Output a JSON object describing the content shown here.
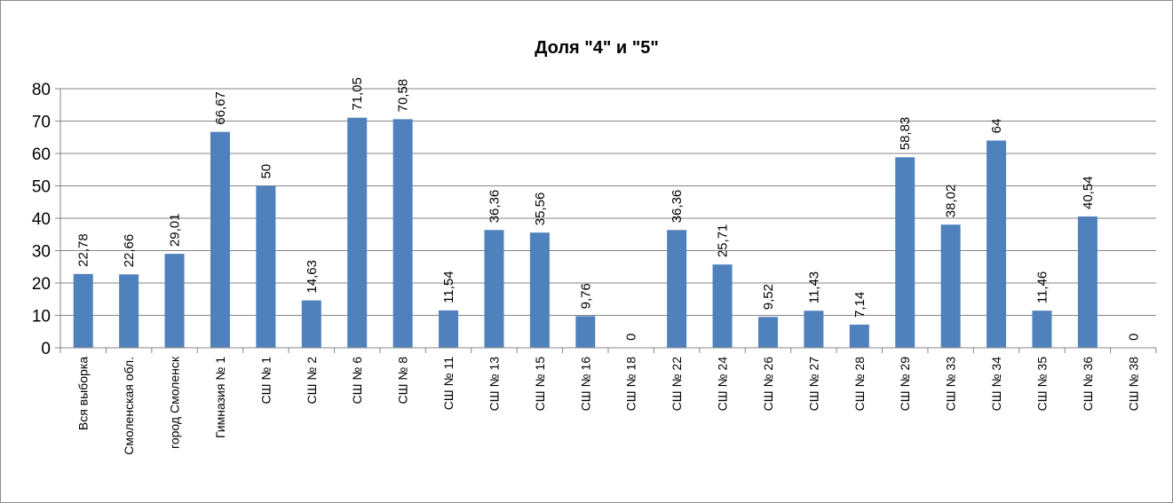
{
  "chart_data": {
    "type": "bar",
    "title": "Доля \"4\" и \"5\"",
    "xlabel": "",
    "ylabel": "",
    "ylim": [
      0,
      80
    ],
    "yticks": [
      "0",
      "10",
      "20",
      "30",
      "40",
      "50",
      "60",
      "70",
      "80"
    ],
    "grid": true,
    "legend": "none",
    "colors": {
      "bar": "#4f81bd",
      "grid": "#868686",
      "axis": "#868686"
    },
    "categories": [
      "Вся выборка",
      "Смоленская обл.",
      "город Смоленск",
      "Гимназия № 1",
      "СШ № 1",
      "СШ № 2",
      "СШ № 6",
      "СШ № 8",
      "СШ № 11",
      "СШ № 13",
      "СШ № 15",
      "СШ № 16",
      "СШ № 18",
      "СШ № 22",
      "СШ № 24",
      "СШ № 26",
      "СШ № 27",
      "СШ № 28",
      "СШ № 29",
      "СШ № 33",
      "СШ № 34",
      "СШ № 35",
      "СШ № 36",
      "СШ № 38"
    ],
    "values": [
      22.78,
      22.66,
      29.01,
      66.67,
      50,
      14.63,
      71.05,
      70.58,
      11.54,
      36.36,
      35.56,
      9.76,
      0,
      36.36,
      25.71,
      9.52,
      11.43,
      7.14,
      58.83,
      38.02,
      64,
      11.46,
      40.54,
      0
    ],
    "data_labels": [
      "22,78",
      "22,66",
      "29,01",
      "66,67",
      "50",
      "14,63",
      "71,05",
      "70,58",
      "11,54",
      "36,36",
      "35,56",
      "9,76",
      "0",
      "36,36",
      "25,71",
      "9,52",
      "11,43",
      "7,14",
      "58,83",
      "38,02",
      "64",
      "11,46",
      "40,54",
      "0"
    ]
  }
}
